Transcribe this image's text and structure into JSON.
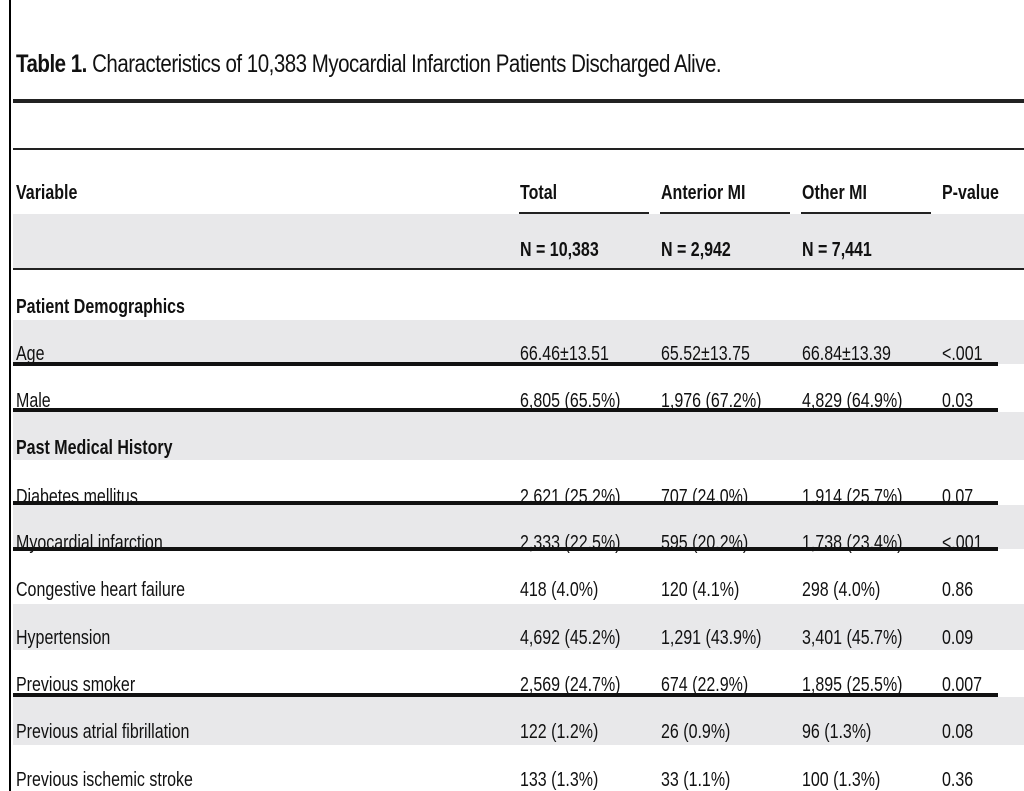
{
  "title": {
    "label": "Table 1.",
    "text": "Characteristics of 10,383 Myocardial Infarction Patients Discharged Alive."
  },
  "header": {
    "columns": [
      "Variable",
      "Total",
      "Anterior MI",
      "Other MI",
      "P-value"
    ],
    "n_row": [
      "N = 10,383",
      "N = 2,942",
      "N = 7,441"
    ]
  },
  "sections": [
    {
      "label": "Patient Demographics"
    },
    {
      "label": "Past Medical History"
    }
  ],
  "rows": [
    {
      "variable": "Age",
      "total": "66.46±13.51",
      "anterior": "65.52±13.75",
      "other": "66.84±13.39",
      "p": "<.001"
    },
    {
      "variable": "Male",
      "total": "6,805 (65.5%)",
      "anterior": "1,976 (67.2%)",
      "other": "4,829 (64.9%)",
      "p": "0.03"
    },
    {
      "variable": "Diabetes mellitus",
      "total": "2,621 (25.2%)",
      "anterior": "707 (24.0%)",
      "other": "1,914 (25.7%)",
      "p": "0.07"
    },
    {
      "variable": "Myocardial infarction",
      "total": "2,333 (22.5%)",
      "anterior": "595 (20.2%)",
      "other": "1,738 (23.4%)",
      "p": "<.001"
    },
    {
      "variable": "Congestive heart failure",
      "total": "418 (4.0%)",
      "anterior": "120 (4.1%)",
      "other": "298 (4.0%)",
      "p": "0.86"
    },
    {
      "variable": "Hypertension",
      "total": "4,692 (45.2%)",
      "anterior": "1,291 (43.9%)",
      "other": "3,401 (45.7%)",
      "p": "0.09"
    },
    {
      "variable": "Previous smoker",
      "total": "2,569 (24.7%)",
      "anterior": "674 (22.9%)",
      "other": "1,895 (25.5%)",
      "p": "0.007"
    },
    {
      "variable": "Previous atrial fibrillation",
      "total": "122 (1.2%)",
      "anterior": "26 (0.9%)",
      "other": "96 (1.3%)",
      "p": "0.08"
    },
    {
      "variable": "Previous ischemic stroke",
      "total": "133 (1.3%)",
      "anterior": "33 (1.1%)",
      "other": "100 (1.3%)",
      "p": "0.36"
    }
  ]
}
